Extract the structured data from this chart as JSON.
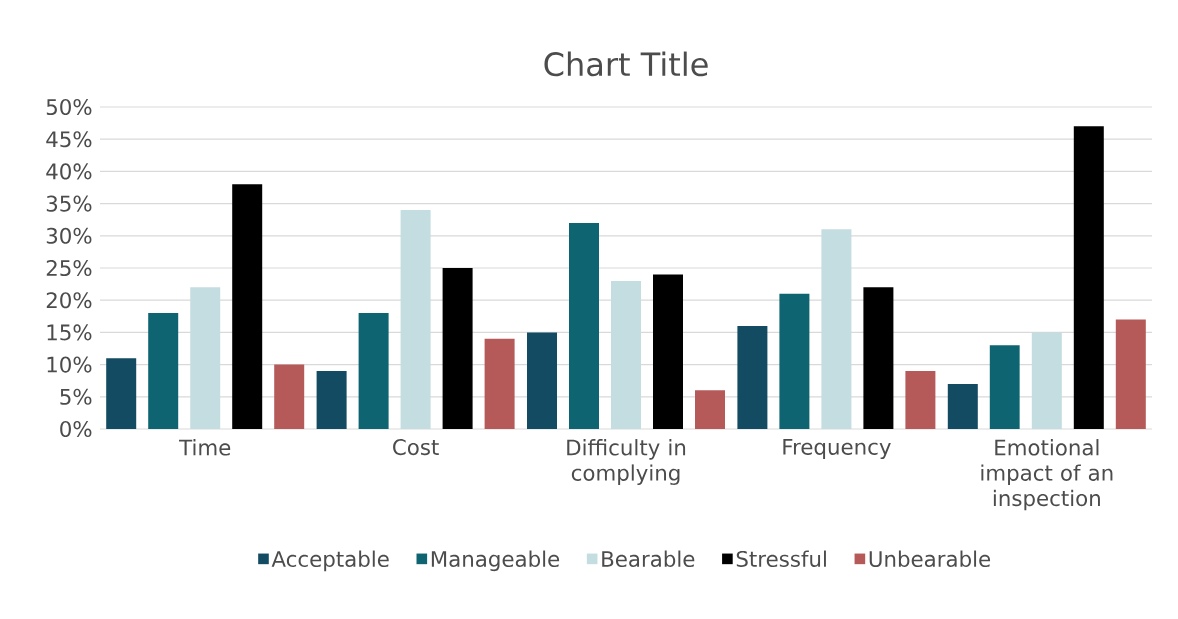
{
  "chart_data": {
    "type": "bar",
    "title": "Chart Title",
    "categories": [
      "Time",
      "Cost",
      "Difficulty in complying",
      "Frequency",
      "Emotional impact of an inspection"
    ],
    "series": [
      {
        "name": "Acceptable",
        "color": "#124b62",
        "values": [
          11,
          9,
          15,
          16,
          7
        ]
      },
      {
        "name": "Manageable",
        "color": "#0e6471",
        "values": [
          18,
          18,
          32,
          21,
          13
        ]
      },
      {
        "name": "Bearable",
        "color": "#c4dde0",
        "values": [
          22,
          34,
          23,
          31,
          15
        ]
      },
      {
        "name": "Stressful",
        "color": "#000000",
        "values": [
          38,
          25,
          24,
          22,
          47
        ]
      },
      {
        "name": "Unbearable",
        "color": "#b55a59",
        "values": [
          10,
          14,
          6,
          9,
          17
        ]
      }
    ],
    "ylim": [
      0,
      50
    ],
    "yticks": [
      {
        "value": 0,
        "label": "0%"
      },
      {
        "value": 5,
        "label": "5%"
      },
      {
        "value": 10,
        "label": "10%"
      },
      {
        "value": 15,
        "label": "15%"
      },
      {
        "value": 20,
        "label": "20%"
      },
      {
        "value": 25,
        "label": "25%"
      },
      {
        "value": 30,
        "label": "30%"
      },
      {
        "value": 35,
        "label": "35%"
      },
      {
        "value": 40,
        "label": "40%"
      },
      {
        "value": 45,
        "label": "45%"
      },
      {
        "value": 50,
        "label": "50%"
      }
    ],
    "grid": "y",
    "legend": "bottom"
  }
}
